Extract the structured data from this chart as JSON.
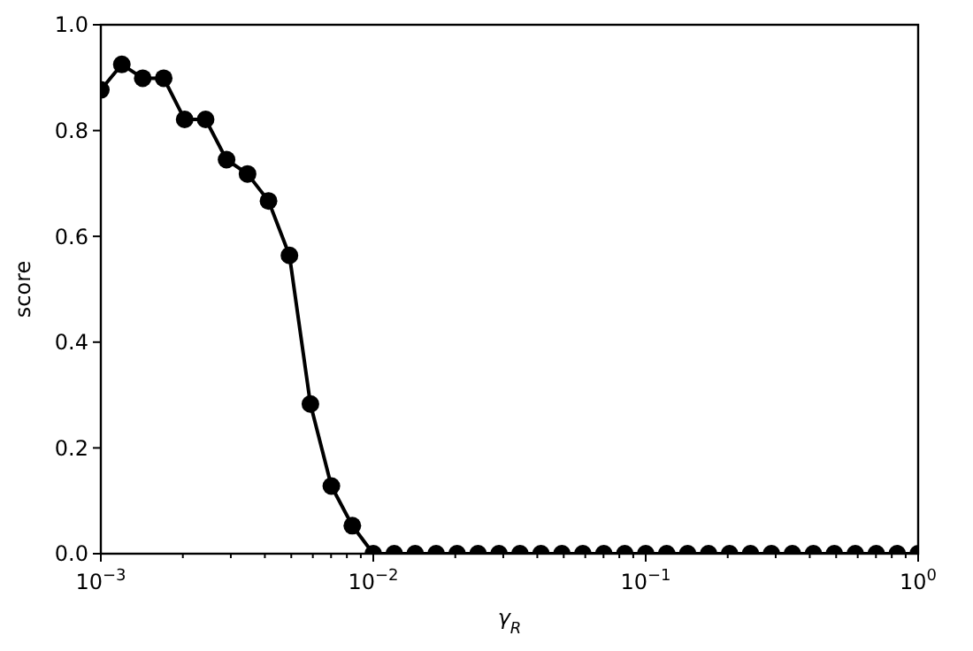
{
  "chart_data": {
    "type": "line",
    "xlabel": "γ$_{R}$",
    "ylabel": "score",
    "log": "x",
    "marker": "circle",
    "line_style": "solid",
    "grid": false,
    "xlim": [
      0.001,
      1
    ],
    "ylim": [
      0,
      1
    ],
    "xticks": [
      {
        "value": 0.001,
        "label": "10$^{−3}$"
      },
      {
        "value": 0.002,
        "label": null
      },
      {
        "value": 0.003,
        "label": null
      },
      {
        "value": 0.004,
        "label": null
      },
      {
        "value": 0.005,
        "label": null
      },
      {
        "value": 0.006,
        "label": null
      },
      {
        "value": 0.007,
        "label": null
      },
      {
        "value": 0.008,
        "label": null
      },
      {
        "value": 0.009,
        "label": null
      },
      {
        "value": 0.01,
        "label": "10$^{−2}$"
      },
      {
        "value": 0.02,
        "label": null
      },
      {
        "value": 0.03,
        "label": null
      },
      {
        "value": 0.04,
        "label": null
      },
      {
        "value": 0.05,
        "label": null
      },
      {
        "value": 0.06,
        "label": null
      },
      {
        "value": 0.07,
        "label": null
      },
      {
        "value": 0.08,
        "label": null
      },
      {
        "value": 0.09,
        "label": null
      },
      {
        "value": 0.1,
        "label": "10$^{−1}$"
      },
      {
        "value": 0.2,
        "label": null
      },
      {
        "value": 0.3,
        "label": null
      },
      {
        "value": 0.4,
        "label": null
      },
      {
        "value": 0.5,
        "label": null
      },
      {
        "value": 0.6,
        "label": null
      },
      {
        "value": 0.7,
        "label": null
      },
      {
        "value": 0.8,
        "label": null
      },
      {
        "value": 0.9,
        "label": null
      },
      {
        "value": 1,
        "label": "10$^{0}$"
      }
    ],
    "yticks": [
      {
        "value": 0,
        "label": "0.0"
      },
      {
        "value": 0.2,
        "label": "0.2"
      },
      {
        "value": 0.4,
        "label": "0.4"
      },
      {
        "value": 0.6,
        "label": "0.6"
      },
      {
        "value": 0.8,
        "label": "0.8"
      },
      {
        "value": 1,
        "label": "1.0"
      }
    ],
    "series": [
      {
        "color": "#000000",
        "x": [
          0.001,
          0.001194,
          0.001425,
          0.001701,
          0.002031,
          0.002424,
          0.002894,
          0.003455,
          0.004125,
          0.004924,
          0.005878,
          0.007017,
          0.008377,
          0.01,
          0.01194,
          0.01425,
          0.01701,
          0.02031,
          0.02424,
          0.02894,
          0.03455,
          0.04125,
          0.04924,
          0.05878,
          0.07017,
          0.08377,
          0.1,
          0.1194,
          0.1425,
          0.1701,
          0.2031,
          0.2424,
          0.2894,
          0.3455,
          0.4125,
          0.4924,
          0.5878,
          0.7017,
          0.8377,
          1
        ],
        "values": [
          0.877,
          0.925,
          0.899,
          0.899,
          0.821,
          0.821,
          0.745,
          0.718,
          0.667,
          0.564,
          0.283,
          0.128,
          0.053,
          0,
          0,
          0,
          0,
          0,
          0,
          0,
          0,
          0,
          0,
          0,
          0,
          0,
          0,
          0,
          0,
          0,
          0,
          0,
          0,
          0,
          0,
          0,
          0,
          0,
          0,
          0
        ]
      }
    ]
  }
}
